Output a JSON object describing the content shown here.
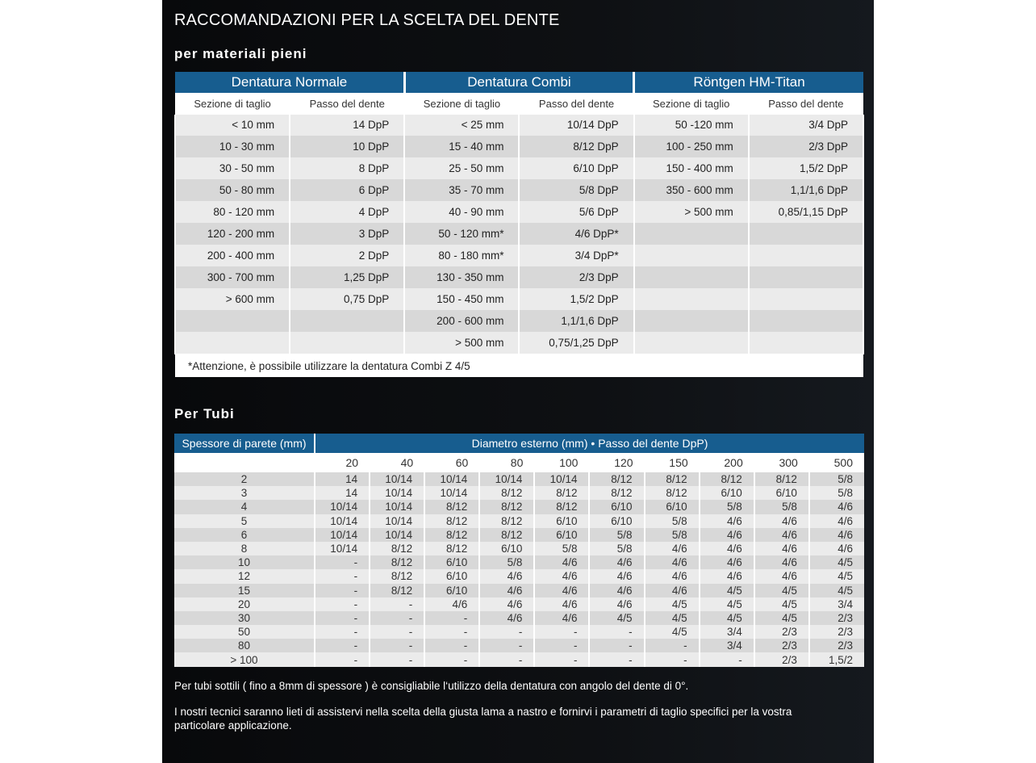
{
  "title": "RACCOMANDAZIONI PER LA SCELTA DEL DENTE",
  "section1": {
    "heading": "per materiali pieni",
    "groups": [
      "Dentatura Normale",
      "Dentatura Combi",
      "Röntgen HM-Titan"
    ],
    "subheaders": [
      "Sezione di taglio",
      "Passo del dente",
      "Sezione di taglio",
      "Passo del dente",
      "Sezione di taglio",
      "Passo del dente"
    ],
    "rows": [
      [
        "< 10 mm",
        "14 DpP",
        "< 25 mm",
        "10/14 DpP",
        "50 -120 mm",
        "3/4 DpP"
      ],
      [
        "10 - 30 mm",
        "10 DpP",
        "15 - 40 mm",
        "8/12 DpP",
        "100 - 250 mm",
        "2/3 DpP"
      ],
      [
        "30 - 50 mm",
        "8 DpP",
        "25 - 50 mm",
        "6/10 DpP",
        "150 - 400 mm",
        "1,5/2 DpP"
      ],
      [
        "50 - 80 mm",
        "6 DpP",
        "35 - 70 mm",
        "5/8 DpP",
        "350 - 600 mm",
        "1,1/1,6 DpP"
      ],
      [
        "80 - 120 mm",
        "4 DpP",
        "40 - 90 mm",
        "5/6 DpP",
        "> 500 mm",
        "0,85/1,15 DpP"
      ],
      [
        "120 - 200 mm",
        "3 DpP",
        "50 - 120 mm*",
        "4/6 DpP*",
        "",
        ""
      ],
      [
        "200 - 400 mm",
        "2 DpP",
        "80 - 180 mm*",
        "3/4 DpP*",
        "",
        ""
      ],
      [
        "300 - 700 mm",
        "1,25 DpP",
        "130 - 350 mm",
        "2/3 DpP",
        "",
        ""
      ],
      [
        "> 600 mm",
        "0,75 DpP",
        "150 - 450 mm",
        "1,5/2 DpP",
        "",
        ""
      ],
      [
        "",
        "",
        "200 - 600 mm",
        "1,1/1,6 DpP",
        "",
        ""
      ],
      [
        "",
        "",
        "> 500 mm",
        "0,75/1,25 DpP",
        "",
        ""
      ]
    ],
    "note": "*Attenzione, è possibile utilizzare la dentatura Combi Z 4/5"
  },
  "section2": {
    "heading": "Per Tubi",
    "row_header": "Spessore di parete (mm)",
    "col_header": "Diametro esterno (mm) • Passo del dente DpP)",
    "diameters": [
      "20",
      "40",
      "60",
      "80",
      "100",
      "120",
      "150",
      "200",
      "300",
      "500"
    ],
    "rows": [
      [
        "2",
        "14",
        "10/14",
        "10/14",
        "10/14",
        "10/14",
        "8/12",
        "8/12",
        "8/12",
        "8/12",
        "5/8"
      ],
      [
        "3",
        "14",
        "10/14",
        "10/14",
        "8/12",
        "8/12",
        "8/12",
        "8/12",
        "6/10",
        "6/10",
        "5/8"
      ],
      [
        "4",
        "10/14",
        "10/14",
        "8/12",
        "8/12",
        "8/12",
        "6/10",
        "6/10",
        "5/8",
        "5/8",
        "4/6"
      ],
      [
        "5",
        "10/14",
        "10/14",
        "8/12",
        "8/12",
        "6/10",
        "6/10",
        "5/8",
        "4/6",
        "4/6",
        "4/6"
      ],
      [
        "6",
        "10/14",
        "10/14",
        "8/12",
        "8/12",
        "6/10",
        "5/8",
        "5/8",
        "4/6",
        "4/6",
        "4/6"
      ],
      [
        "8",
        "10/14",
        "8/12",
        "8/12",
        "6/10",
        "5/8",
        "5/8",
        "4/6",
        "4/6",
        "4/6",
        "4/6"
      ],
      [
        "10",
        "-",
        "8/12",
        "6/10",
        "5/8",
        "4/6",
        "4/6",
        "4/6",
        "4/6",
        "4/6",
        "4/5"
      ],
      [
        "12",
        "-",
        "8/12",
        "6/10",
        "4/6",
        "4/6",
        "4/6",
        "4/6",
        "4/6",
        "4/6",
        "4/5"
      ],
      [
        "15",
        "-",
        "8/12",
        "6/10",
        "4/6",
        "4/6",
        "4/6",
        "4/6",
        "4/5",
        "4/5",
        "4/5"
      ],
      [
        "20",
        "-",
        "-",
        "4/6",
        "4/6",
        "4/6",
        "4/6",
        "4/5",
        "4/5",
        "4/5",
        "3/4"
      ],
      [
        "30",
        "-",
        "-",
        "-",
        "4/6",
        "4/6",
        "4/5",
        "4/5",
        "4/5",
        "4/5",
        "2/3"
      ],
      [
        "50",
        "-",
        "-",
        "-",
        "-",
        "-",
        "-",
        "4/5",
        "3/4",
        "2/3",
        "2/3"
      ],
      [
        "80",
        "-",
        "-",
        "-",
        "-",
        "-",
        "-",
        "-",
        "3/4",
        "2/3",
        "2/3"
      ],
      [
        "> 100",
        "-",
        "-",
        "-",
        "-",
        "-",
        "-",
        "-",
        "-",
        "2/3",
        "1,5/2"
      ]
    ],
    "note1": "Per tubi sottili ( fino a 8mm di spessore ) è consigliabile l‘utilizzo della dentatura con angolo del dente di 0°.",
    "note2": "I nostri tecnici saranno lieti di assistervi nella scelta della giusta lama a nastro e fornirvi i parametri di taglio specifici per la vostra particolare applicazione."
  }
}
